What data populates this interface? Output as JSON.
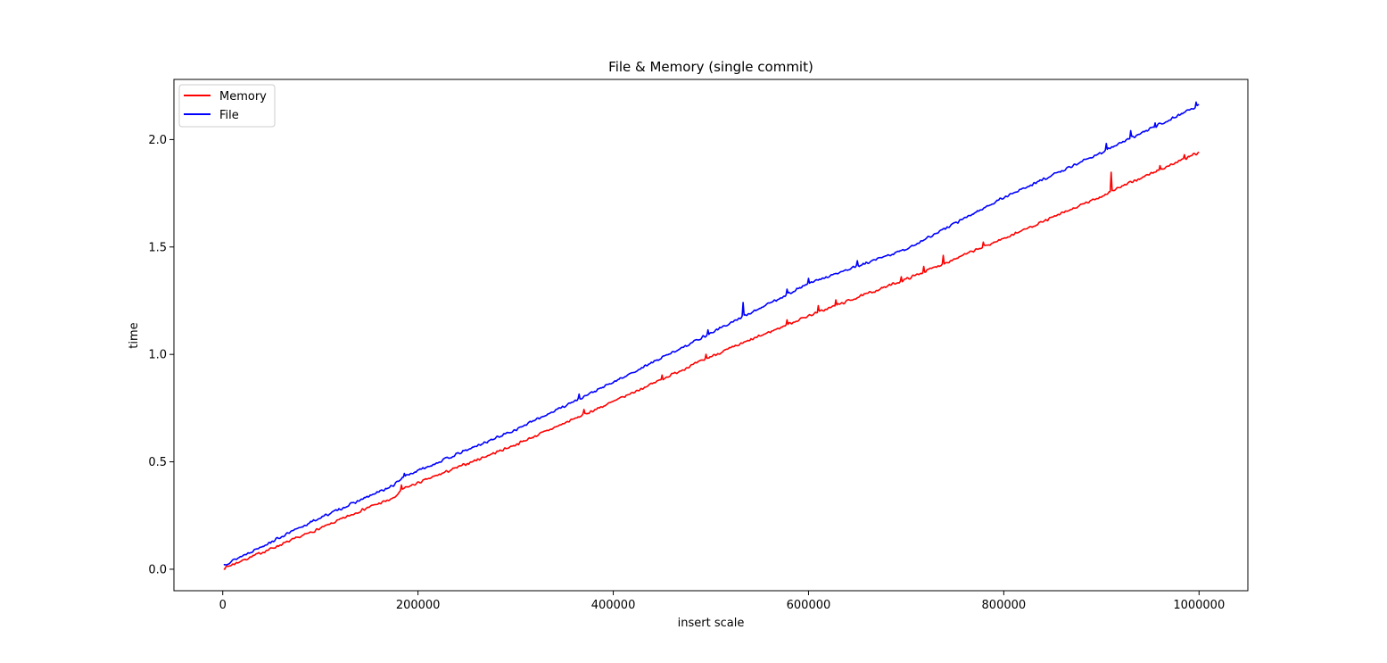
{
  "chart_data": {
    "type": "line",
    "title": "File & Memory (single commit)",
    "xlabel": "insert scale",
    "ylabel": "time",
    "xlim": [
      -50000,
      1050000
    ],
    "ylim": [
      -0.1,
      2.28
    ],
    "xticks": [
      0,
      200000,
      400000,
      600000,
      800000,
      1000000
    ],
    "xtick_labels": [
      "0",
      "200000",
      "400000",
      "600000",
      "800000",
      "1000000"
    ],
    "yticks": [
      0.0,
      0.5,
      1.0,
      1.5,
      2.0
    ],
    "ytick_labels": [
      "0.0",
      "0.5",
      "1.0",
      "1.5",
      "2.0"
    ],
    "grid": false,
    "legend_position": "top-left",
    "x_start": 1000,
    "x_step": 1000,
    "series": [
      {
        "name": "Memory",
        "color": "#ff0000",
        "anchors": [
          [
            1000,
            0.005
          ],
          [
            100000,
            0.19
          ],
          [
            150000,
            0.29
          ],
          [
            175000,
            0.33
          ],
          [
            185000,
            0.375
          ],
          [
            300000,
            0.58
          ],
          [
            400000,
            0.78
          ],
          [
            500000,
            0.99
          ],
          [
            600000,
            1.18
          ],
          [
            700000,
            1.35
          ],
          [
            800000,
            1.54
          ],
          [
            900000,
            1.735
          ],
          [
            910000,
            1.76
          ],
          [
            1000000,
            1.94
          ]
        ],
        "noise": 0.007,
        "seed": 7,
        "spikes": [
          [
            183000,
            0.02
          ],
          [
            370000,
            0.02
          ],
          [
            450000,
            0.02
          ],
          [
            495000,
            0.02
          ],
          [
            578000,
            0.025
          ],
          [
            610000,
            0.025
          ],
          [
            628000,
            0.03
          ],
          [
            695000,
            0.02
          ],
          [
            718000,
            0.025
          ],
          [
            738000,
            0.04
          ],
          [
            779000,
            0.02
          ],
          [
            910000,
            0.09
          ],
          [
            960000,
            0.02
          ],
          [
            985000,
            0.015
          ]
        ]
      },
      {
        "name": "File",
        "color": "#0000ff",
        "anchors": [
          [
            1000,
            0.02
          ],
          [
            100000,
            0.24
          ],
          [
            150000,
            0.34
          ],
          [
            175000,
            0.39
          ],
          [
            185000,
            0.43
          ],
          [
            300000,
            0.65
          ],
          [
            400000,
            0.87
          ],
          [
            500000,
            1.1
          ],
          [
            600000,
            1.33
          ],
          [
            700000,
            1.49
          ],
          [
            800000,
            1.73
          ],
          [
            900000,
            1.94
          ],
          [
            1000000,
            2.16
          ]
        ],
        "noise": 0.007,
        "seed": 13,
        "spikes": [
          [
            186000,
            0.02
          ],
          [
            365000,
            0.02
          ],
          [
            497000,
            0.02
          ],
          [
            533000,
            0.06
          ],
          [
            578000,
            0.02
          ],
          [
            600000,
            0.02
          ],
          [
            650000,
            0.02
          ],
          [
            905000,
            0.03
          ],
          [
            930000,
            0.03
          ],
          [
            955000,
            0.02
          ],
          [
            997000,
            0.02
          ]
        ]
      }
    ]
  }
}
